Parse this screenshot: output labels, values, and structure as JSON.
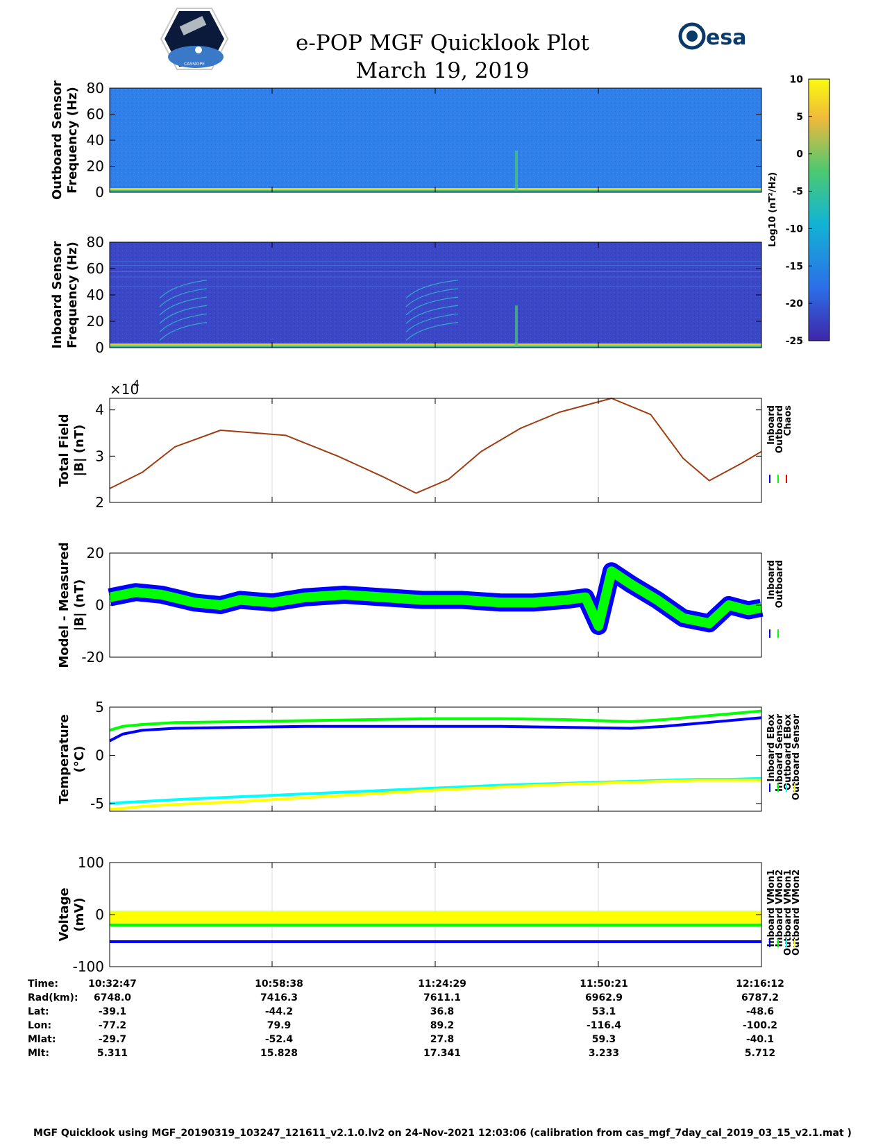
{
  "header": {
    "title": "e-POP MGF Quicklook Plot",
    "date": "March 19, 2019",
    "esa_logo_text": "esa",
    "epop_logo_text": "CASSIOPE"
  },
  "colorbar": {
    "label": "Log10 (nT²/Hz)",
    "ticks": [
      "10",
      "5",
      "0",
      "-5",
      "-10",
      "-15",
      "-20",
      "-25"
    ],
    "range": [
      -25,
      10
    ]
  },
  "chart_data": [
    {
      "type": "heatmap",
      "title": "",
      "ylabel": [
        "Outboard Sensor",
        "Frequency (Hz)"
      ],
      "yticks": [
        "80",
        "60",
        "40",
        "20",
        "0"
      ],
      "ylim": [
        0,
        80
      ],
      "base_color": "#2f80e8"
    },
    {
      "type": "heatmap",
      "title": "",
      "ylabel": [
        "Inboard Sensor",
        "Frequency (Hz)"
      ],
      "yticks": [
        "80",
        "60",
        "40",
        "20",
        "0"
      ],
      "ylim": [
        0,
        80
      ],
      "base_color": "#3a48c8"
    },
    {
      "type": "line",
      "ylabel": [
        "Total Field",
        "|B| (nT)"
      ],
      "exponent": "×10",
      "exponent_power": "4",
      "yticks": [
        "4",
        "3",
        "2"
      ],
      "ylim": [
        2,
        4.25
      ],
      "x": [
        0,
        0.05,
        0.1,
        0.17,
        0.27,
        0.35,
        0.42,
        0.47,
        0.52,
        0.57,
        0.63,
        0.69,
        0.77,
        0.83,
        0.88,
        0.92,
        0.97,
        1.0
      ],
      "series": [
        {
          "name": "Inboard",
          "color": "#0000ff",
          "values": [
            2.3,
            2.65,
            3.2,
            3.56,
            3.45,
            3.0,
            2.55,
            2.2,
            2.5,
            3.1,
            3.6,
            3.95,
            4.25,
            3.9,
            2.95,
            2.47,
            2.85,
            3.1
          ]
        },
        {
          "name": "Outboard",
          "color": "#00ff00",
          "values": [
            2.3,
            2.65,
            3.2,
            3.56,
            3.45,
            3.0,
            2.55,
            2.2,
            2.5,
            3.1,
            3.6,
            3.95,
            4.25,
            3.9,
            2.95,
            2.47,
            2.85,
            3.1
          ]
        },
        {
          "name": "Chaos",
          "color": "#ff0000",
          "values": [
            2.3,
            2.65,
            3.2,
            3.56,
            3.45,
            3.0,
            2.55,
            2.2,
            2.5,
            3.1,
            3.6,
            3.95,
            4.25,
            3.9,
            2.95,
            2.47,
            2.85,
            3.1
          ]
        }
      ]
    },
    {
      "type": "line",
      "ylabel": [
        "Model - Measured",
        "|B| (nT)"
      ],
      "yticks": [
        "20",
        "0",
        "-20"
      ],
      "ylim": [
        -20,
        20
      ],
      "x": [
        0,
        0.04,
        0.08,
        0.13,
        0.17,
        0.2,
        0.25,
        0.3,
        0.36,
        0.42,
        0.48,
        0.54,
        0.6,
        0.65,
        0.7,
        0.73,
        0.75,
        0.77,
        0.8,
        0.84,
        0.88,
        0.92,
        0.95,
        0.98,
        1.0
      ],
      "series": [
        {
          "name": "Inboard",
          "color": "#0000ff",
          "values": [
            3,
            5,
            4,
            1,
            0,
            2,
            1,
            3,
            4,
            3,
            2,
            2,
            1,
            1,
            2,
            3,
            -8,
            13,
            8,
            2,
            -5,
            -7,
            0,
            -2,
            -1
          ]
        },
        {
          "name": "Outboard",
          "color": "#00ff00",
          "values": [
            3,
            5,
            4,
            1,
            0,
            2,
            1,
            3,
            4,
            3,
            2,
            2,
            1,
            1,
            2,
            3,
            -8,
            13,
            8,
            2,
            -5,
            -7,
            0,
            -2,
            -1
          ]
        }
      ]
    },
    {
      "type": "line",
      "ylabel": [
        "Temperature",
        "(°C)"
      ],
      "yticks": [
        "5",
        "0",
        "-5"
      ],
      "ylim": [
        -5.8,
        5
      ],
      "x": [
        0,
        0.02,
        0.05,
        0.1,
        0.2,
        0.3,
        0.4,
        0.5,
        0.6,
        0.7,
        0.8,
        0.85,
        0.9,
        0.95,
        1.0
      ],
      "series": [
        {
          "name": "Inboard EBox",
          "color": "#0000ff",
          "values": [
            1.5,
            2.2,
            2.6,
            2.8,
            2.9,
            3.0,
            3.0,
            3.0,
            3.0,
            2.9,
            2.8,
            3.0,
            3.3,
            3.6,
            3.9
          ]
        },
        {
          "name": "Inboard Sensor",
          "color": "#00ff00",
          "values": [
            2.6,
            3.0,
            3.2,
            3.4,
            3.5,
            3.6,
            3.7,
            3.8,
            3.8,
            3.7,
            3.5,
            3.7,
            4.0,
            4.3,
            4.6
          ]
        },
        {
          "name": "Outboard EBox",
          "color": "#00ffff",
          "values": [
            -5.0,
            -4.9,
            -4.8,
            -4.6,
            -4.3,
            -4.0,
            -3.7,
            -3.4,
            -3.1,
            -2.9,
            -2.7,
            -2.6,
            -2.5,
            -2.5,
            -2.4
          ]
        },
        {
          "name": "Outboard Sensor",
          "color": "#ffff00",
          "values": [
            -5.6,
            -5.5,
            -5.3,
            -5.1,
            -4.8,
            -4.4,
            -4.0,
            -3.6,
            -3.3,
            -3.0,
            -2.8,
            -2.7,
            -2.6,
            -2.6,
            -2.6
          ]
        }
      ]
    },
    {
      "type": "line",
      "ylabel": [
        "Voltage",
        "(mV)"
      ],
      "yticks": [
        "100",
        "0",
        "-100"
      ],
      "ylim": [
        -100,
        100
      ],
      "x": [
        0,
        1
      ],
      "series": [
        {
          "name": "Inboard VMon1",
          "color": "#0000ff",
          "values": [
            -52,
            -52
          ]
        },
        {
          "name": "Inboard VMon2",
          "color": "#00ff00",
          "values": [
            -20,
            -20
          ]
        },
        {
          "name": "Outboard VMon1",
          "color": "#00ffff",
          "values": [
            -5,
            -5
          ]
        },
        {
          "name": "Outboard VMon2",
          "color": "#ffff00",
          "values": [
            -5,
            -5
          ]
        }
      ]
    }
  ],
  "ephemeris": {
    "labels": [
      "Time:",
      "Rad(km):",
      "Lat:",
      "Lon:",
      "Mlat:",
      "Mlt:"
    ],
    "columns": [
      {
        "time": "10:32:47",
        "rad": "6748.0",
        "lat": "-39.1",
        "lon": "-77.2",
        "mlat": "-29.7",
        "mlt": "5.311"
      },
      {
        "time": "10:58:38",
        "rad": "7416.3",
        "lat": "-44.2",
        "lon": "79.9",
        "mlat": "-52.4",
        "mlt": "15.828"
      },
      {
        "time": "11:24:29",
        "rad": "7611.1",
        "lat": "36.8",
        "lon": "89.2",
        "mlat": "27.8",
        "mlt": "17.341"
      },
      {
        "time": "11:50:21",
        "rad": "6962.9",
        "lat": "53.1",
        "lon": "-116.4",
        "mlat": "59.3",
        "mlt": "3.233"
      },
      {
        "time": "12:16:12",
        "rad": "6787.2",
        "lat": "-48.6",
        "lon": "-100.2",
        "mlat": "-40.1",
        "mlt": "5.712"
      }
    ]
  },
  "footer": "MGF Quicklook using MGF_20190319_103247_121611_v2.1.0.lv2 on 24-Nov-2021 12:03:06 (calibration from cas_mgf_7day_cal_2019_03_15_v2.1.mat )"
}
